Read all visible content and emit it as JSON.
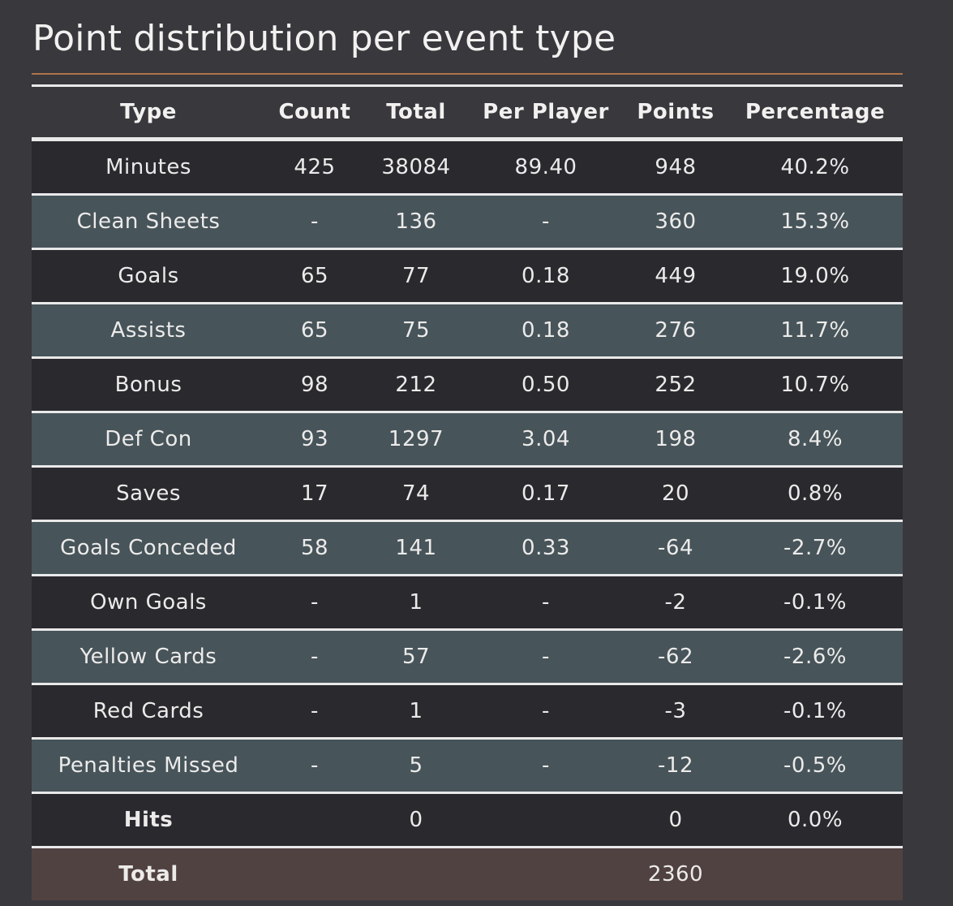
{
  "title": "Point distribution per event type",
  "table": {
    "headers": [
      "Type",
      "Count",
      "Total",
      "Per Player",
      "Points",
      "Percentage"
    ],
    "rows": [
      {
        "type": "Minutes",
        "count": "425",
        "total": "38084",
        "per_player": "89.40",
        "points": "948",
        "percentage": "40.2%"
      },
      {
        "type": "Clean Sheets",
        "count": "-",
        "total": "136",
        "per_player": "-",
        "points": "360",
        "percentage": "15.3%"
      },
      {
        "type": "Goals",
        "count": "65",
        "total": "77",
        "per_player": "0.18",
        "points": "449",
        "percentage": "19.0%"
      },
      {
        "type": "Assists",
        "count": "65",
        "total": "75",
        "per_player": "0.18",
        "points": "276",
        "percentage": "11.7%"
      },
      {
        "type": "Bonus",
        "count": "98",
        "total": "212",
        "per_player": "0.50",
        "points": "252",
        "percentage": "10.7%"
      },
      {
        "type": "Def Con",
        "count": "93",
        "total": "1297",
        "per_player": "3.04",
        "points": "198",
        "percentage": "8.4%"
      },
      {
        "type": "Saves",
        "count": "17",
        "total": "74",
        "per_player": "0.17",
        "points": "20",
        "percentage": "0.8%"
      },
      {
        "type": "Goals Conceded",
        "count": "58",
        "total": "141",
        "per_player": "0.33",
        "points": "-64",
        "percentage": "-2.7%"
      },
      {
        "type": "Own Goals",
        "count": "-",
        "total": "1",
        "per_player": "-",
        "points": "-2",
        "percentage": "-0.1%"
      },
      {
        "type": "Yellow Cards",
        "count": "-",
        "total": "57",
        "per_player": "-",
        "points": "-62",
        "percentage": "-2.6%"
      },
      {
        "type": "Red Cards",
        "count": "-",
        "total": "1",
        "per_player": "-",
        "points": "-3",
        "percentage": "-0.1%"
      },
      {
        "type": "Penalties Missed",
        "count": "-",
        "total": "5",
        "per_player": "-",
        "points": "-12",
        "percentage": "-0.5%"
      },
      {
        "type": "Hits",
        "count": "",
        "total": "0",
        "per_player": "",
        "points": "0",
        "percentage": "0.0%"
      }
    ],
    "total_row": {
      "type": "Total",
      "count": "",
      "total": "",
      "per_player": "",
      "points": "2360",
      "percentage": ""
    }
  },
  "colors": {
    "background": "#38383d",
    "row_dark": "#2a292e",
    "row_light": "#47545a",
    "total_row": "#514242",
    "title_rule": "#b0744a",
    "row_divider": "#e9e9ea"
  }
}
